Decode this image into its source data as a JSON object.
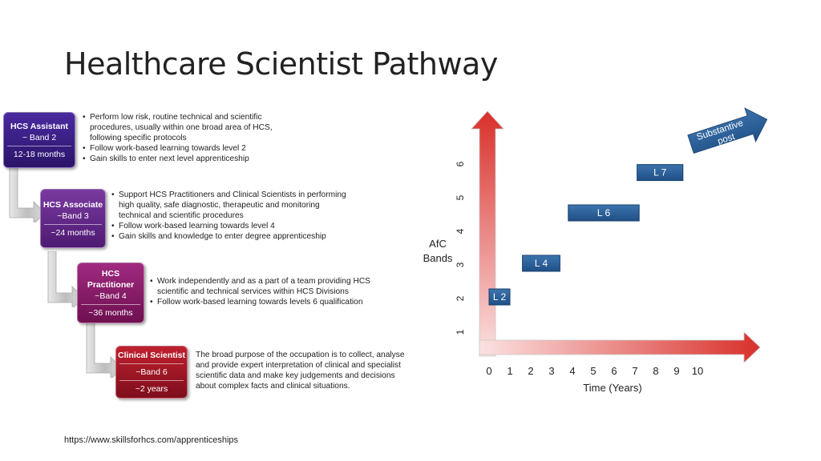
{
  "slide": {
    "title": "Healthcare Scientist Pathway",
    "source_url": "https://www.skillsforhcs.com/apprenticeships"
  },
  "stages": [
    {
      "role": "HCS Assistant",
      "band": "~ Band 2",
      "duration": "12-18 months",
      "color": "#3a1c8c",
      "points": [
        "Perform low risk, routine technical and scientific procedures, usually within one broad area of HCS, following specific protocols",
        "Follow work-based learning towards level 2",
        "Gain skills to enter next level apprenticeship"
      ]
    },
    {
      "role": "HCS Associate",
      "band": "~Band 3",
      "duration": "~24 months",
      "color": "#6a2a8e",
      "points": [
        "Support HCS Practitioners and Clinical Scientists in performing high quality, safe diagnostic, therapeutic and monitoring technical and scientific procedures",
        "Follow work-based learning towards level 4",
        "Gain skills and knowledge to enter degree apprenticeship"
      ]
    },
    {
      "role": "HCS Practitioner",
      "band": "~Band 4",
      "duration": "~36 months",
      "color": "#8a1a66",
      "points": [
        "Work independently and as a part of a team providing HCS scientific and technical services within HCS Divisions",
        "Follow work-based learning towards levels 6 qualification"
      ]
    },
    {
      "role": "Clinical Scientist",
      "band": "~Band 6",
      "duration": "~2 years",
      "color": "#a3182e",
      "description": "The broad purpose of the occupation is to collect, analyse and provide expert interpretation of clinical and specialist scientific data and make key judgements and decisions about complex facts and clinical situations."
    }
  ],
  "chart_data": {
    "type": "step",
    "xlabel": "Time (Years)",
    "ylabel": "AfC Bands",
    "x_ticks": [
      0,
      1,
      2,
      3,
      4,
      5,
      6,
      7,
      8,
      9,
      10
    ],
    "y_ticks": [
      1,
      2,
      3,
      4,
      5,
      6
    ],
    "levels": [
      {
        "label": "L 2",
        "x_start": 0,
        "x_end": 1,
        "band": 2
      },
      {
        "label": "L 4",
        "x_start": 1.6,
        "x_end": 3.4,
        "band": 3
      },
      {
        "label": "L 6",
        "x_start": 3.8,
        "x_end": 7.2,
        "band": 4.5
      },
      {
        "label": "L 7",
        "x_start": 7.1,
        "x_end": 9.3,
        "band": 5.7
      }
    ],
    "end_arrow_label": [
      "Substantive",
      "post"
    ],
    "axis_color": "#d9302a",
    "level_color": "#2b5d96"
  }
}
